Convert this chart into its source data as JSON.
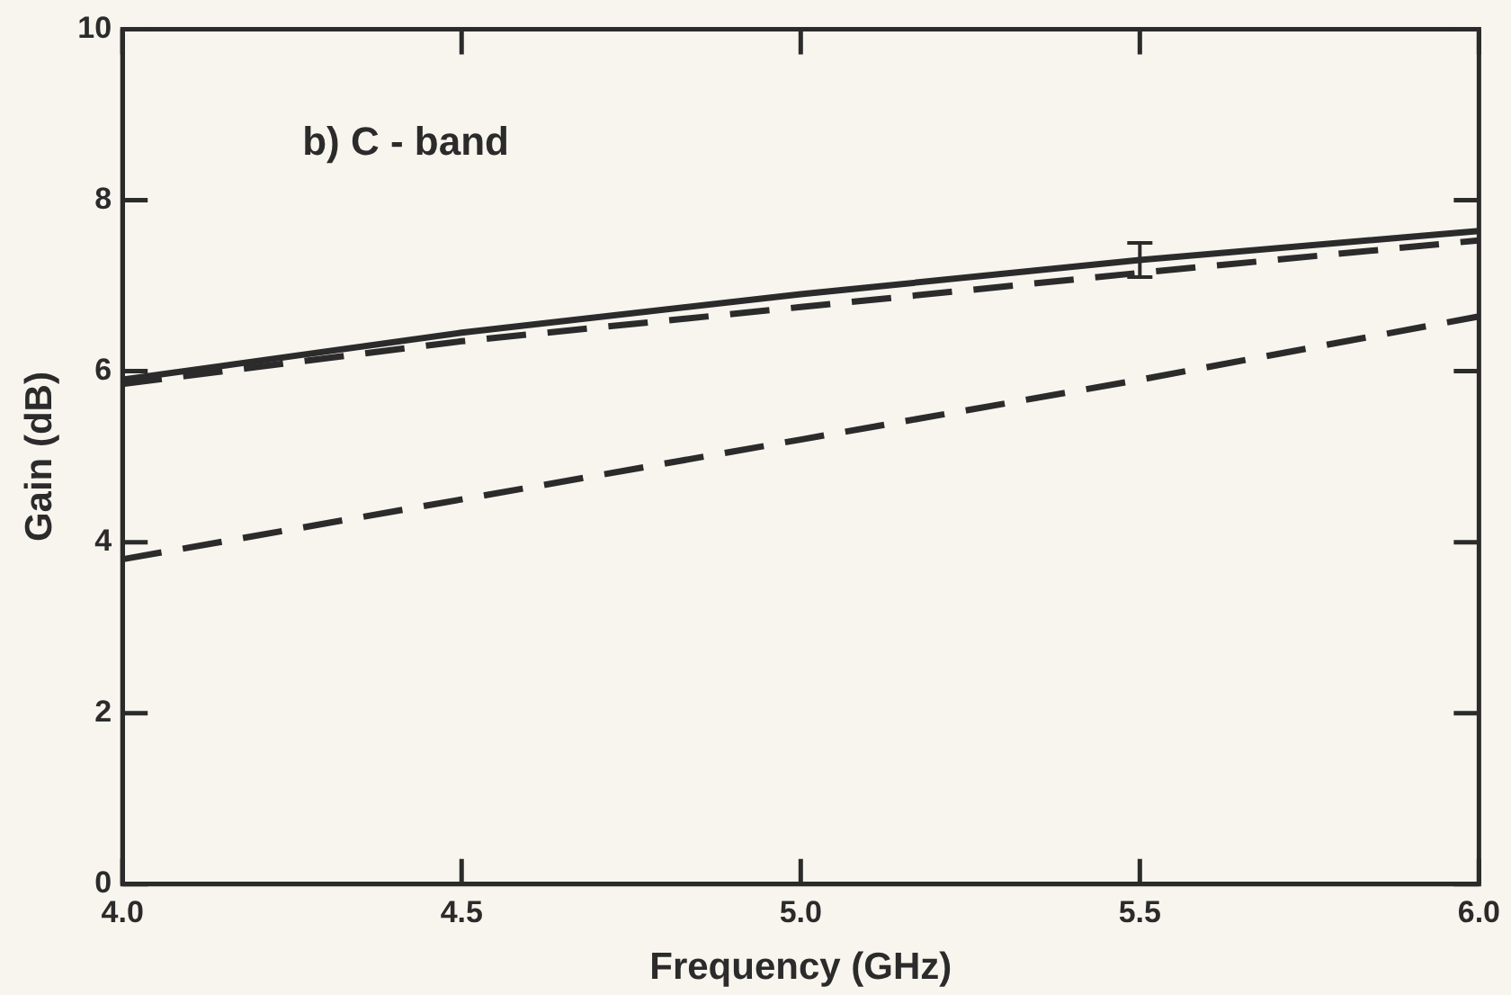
{
  "chart_data": {
    "type": "line",
    "xlabel": "Frequency (GHz)",
    "ylabel": "Gain (dB)",
    "annotations": [
      "b) C - band"
    ],
    "x": [
      4.0,
      4.5,
      5.0,
      5.5,
      6.0
    ],
    "series": [
      {
        "color": "#2b2b2b",
        "values": [
          5.9,
          6.45,
          6.9,
          7.3,
          7.64
        ],
        "line_style": "solid",
        "errors": [
          null,
          null,
          null,
          [
            7.1,
            7.5
          ],
          null
        ]
      },
      {
        "color": "#2b2b2b",
        "values": [
          5.85,
          6.35,
          6.75,
          7.15,
          7.53
        ],
        "line_style": "dashed"
      },
      {
        "color": "#2b2b2b",
        "values": [
          3.8,
          4.5,
          5.2,
          5.9,
          6.64
        ],
        "line_style": "dashed"
      }
    ],
    "xlim": [
      4.0,
      6.0
    ],
    "xticks": [
      {
        "value": 4.0,
        "label": "4.0"
      },
      {
        "value": 4.5,
        "label": "4.5"
      },
      {
        "value": 5.0,
        "label": "5.0"
      },
      {
        "value": 5.5,
        "label": "5.5"
      },
      {
        "value": 6.0,
        "label": "6.0"
      }
    ],
    "ylim": [
      0,
      10
    ],
    "yticks": [
      0,
      2,
      4,
      6,
      8,
      10
    ],
    "grid": false,
    "legend": false,
    "marker": "none"
  }
}
